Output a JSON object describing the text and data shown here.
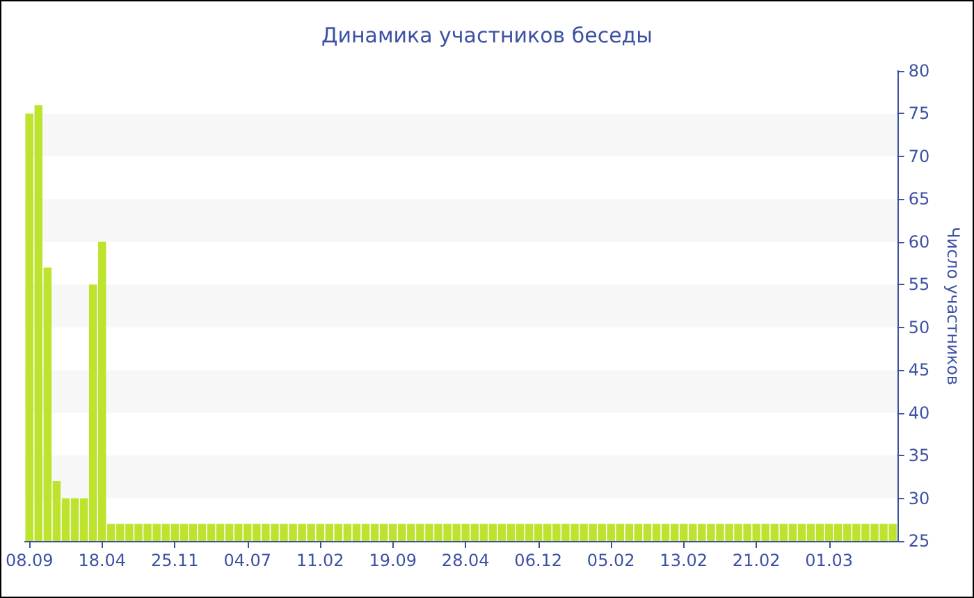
{
  "chart_data": {
    "type": "bar",
    "title": "Динамика участников беседы",
    "ylabel": "Число участников",
    "categories": [
      "08.09",
      null,
      null,
      null,
      null,
      null,
      null,
      null,
      "18.04",
      null,
      null,
      null,
      null,
      null,
      null,
      null,
      "25.11",
      null,
      null,
      null,
      null,
      null,
      null,
      null,
      "04.07",
      null,
      null,
      null,
      null,
      null,
      null,
      null,
      "11.02",
      null,
      null,
      null,
      null,
      null,
      null,
      null,
      "19.09",
      null,
      null,
      null,
      null,
      null,
      null,
      null,
      "28.04",
      null,
      null,
      null,
      null,
      null,
      null,
      null,
      "06.12",
      null,
      null,
      null,
      null,
      null,
      null,
      null,
      "05.02",
      null,
      null,
      null,
      null,
      null,
      null,
      null,
      "13.02",
      null,
      null,
      null,
      null,
      null,
      null,
      null,
      "21.02",
      null,
      null,
      null,
      null,
      null,
      null,
      null,
      "01.03",
      null,
      null,
      null,
      null,
      null,
      null,
      null
    ],
    "values": [
      75,
      76,
      57,
      32,
      30,
      30,
      30,
      55,
      60,
      27,
      27,
      27,
      27,
      27,
      27,
      27,
      27,
      27,
      27,
      27,
      27,
      27,
      27,
      27,
      27,
      27,
      27,
      27,
      27,
      27,
      27,
      27,
      27,
      27,
      27,
      27,
      27,
      27,
      27,
      27,
      27,
      27,
      27,
      27,
      27,
      27,
      27,
      27,
      27,
      27,
      27,
      27,
      27,
      27,
      27,
      27,
      27,
      27,
      27,
      27,
      27,
      27,
      27,
      27,
      27,
      27,
      27,
      27,
      27,
      27,
      27,
      27,
      27,
      27,
      27,
      27,
      27,
      27,
      27,
      27,
      27,
      27,
      27,
      27,
      27,
      27,
      27,
      27,
      27,
      27,
      27,
      27,
      27,
      27,
      27,
      27
    ],
    "color": "#bde32f",
    "ylim": [
      25,
      80
    ],
    "yticks": [
      25,
      30,
      35,
      40,
      45,
      50,
      55,
      60,
      65,
      70,
      75,
      80
    ]
  }
}
